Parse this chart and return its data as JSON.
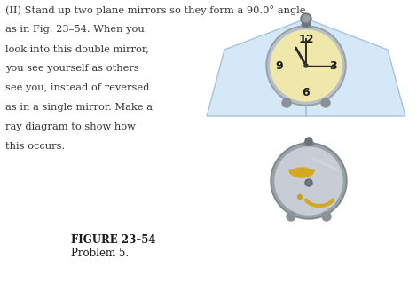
{
  "text_lines": [
    "(II) Stand up two plane mirrors so they form a 90.0° angle",
    "as in Fig. 23–54. When you",
    "look into this double mirror,",
    "you see yourself as others",
    "see you, instead of reversed",
    "as in a single mirror. Make a",
    "ray diagram to show how",
    "this occurs."
  ],
  "figure_label": "FIGURE 23–54",
  "problem_label": "Problem 5.",
  "bg_color": "#ffffff",
  "mirror_fill": "#d4e8f8",
  "mirror_edge": "#a8c4d8",
  "clock_face": "#f0e8aa",
  "clock_body_outer": "#9aa0a8",
  "clock_body_inner": "#b8c0c8",
  "clock_num_color": "#1a1a1a",
  "clock_hand_color": "#2a2a2a",
  "back_clock_body": "#a0a8b0",
  "back_clock_face": "#c8ccd4",
  "back_clock_accent": "#d4a820",
  "back_clock_face_shine": "#d8dce0",
  "hinge_color": "#808890",
  "foot_color": "#8a9298",
  "text_color": "#333333"
}
